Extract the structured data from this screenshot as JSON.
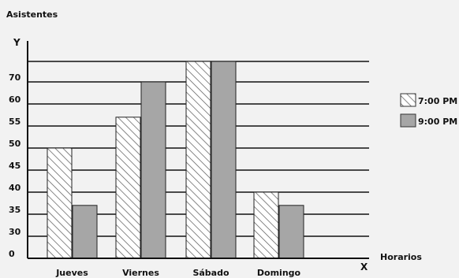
{
  "chart_data": {
    "type": "bar",
    "ylabel": "Asistentes",
    "xlabel": "Horarios",
    "y_axis_letter": "Y",
    "x_axis_letter": "X",
    "categories": [
      "Jueves",
      "Viernes",
      "Sábado",
      "Domingo"
    ],
    "y_ticks": [
      "0",
      "30",
      "35",
      "40",
      "45",
      "50",
      "55",
      "60",
      "70"
    ],
    "series": [
      {
        "name": "7:00 PM",
        "pattern": "hatched",
        "values": [
          50,
          57,
          75,
          40
        ]
      },
      {
        "name": "9:00 PM",
        "fill": "#a6a6a6",
        "values": [
          37,
          70,
          75,
          37
        ]
      }
    ],
    "legend": "right",
    "grid": true
  }
}
